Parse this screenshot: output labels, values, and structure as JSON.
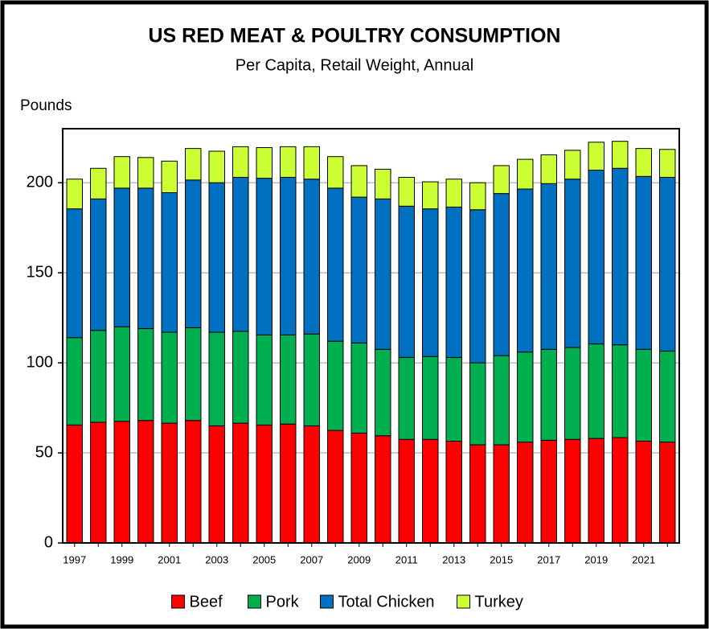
{
  "chart_data": {
    "type": "stacked_bar",
    "title": "US RED MEAT & POULTRY CONSUMPTION",
    "subtitle": "Per Capita, Retail Weight, Annual",
    "y_label": "Pounds",
    "categories": [
      "1997",
      null,
      "1999",
      null,
      "2001",
      null,
      "2003",
      null,
      "2005",
      null,
      "2007",
      null,
      "2009",
      null,
      "2011",
      null,
      "2013",
      null,
      "2015",
      null,
      "2017",
      null,
      "2019",
      null,
      "2021",
      null
    ],
    "series": [
      {
        "name": "Beef",
        "color": "#ff0000",
        "values": [
          65.5,
          67,
          67.5,
          68,
          66.5,
          68,
          65,
          66.5,
          65.5,
          66,
          65,
          62.5,
          61,
          59.5,
          57.5,
          57.5,
          56.5,
          54.5,
          54.5,
          56,
          57,
          57.5,
          58,
          58.5,
          56.5,
          56
        ]
      },
      {
        "name": "Pork",
        "color": "#00b050",
        "values": [
          48.5,
          51,
          52.5,
          51,
          50.5,
          51.5,
          52,
          51,
          50,
          49.5,
          51,
          49.5,
          50,
          48,
          45.5,
          46,
          46.5,
          45.5,
          49.5,
          50,
          50.5,
          51,
          52.5,
          51.5,
          51,
          50.5
        ]
      },
      {
        "name": "Total Chicken",
        "color": "#0070c0",
        "values": [
          71.5,
          73,
          77,
          78,
          77.5,
          82,
          83,
          85.5,
          87,
          87.5,
          86,
          85,
          81,
          83.5,
          84,
          82,
          83.5,
          85,
          90,
          90.5,
          92,
          93.5,
          96.5,
          98,
          96,
          96.5
        ]
      },
      {
        "name": "Turkey",
        "color": "#ccff33",
        "values": [
          16.5,
          17,
          17.5,
          17,
          17.5,
          17.5,
          17.5,
          17,
          17,
          17,
          18,
          17.5,
          17.5,
          16.5,
          16,
          15,
          15.5,
          15,
          15.5,
          16.5,
          16,
          16,
          15.5,
          15,
          15.5,
          15.5
        ]
      }
    ],
    "ylim": [
      0,
      230
    ],
    "yticks": [
      0,
      50,
      100,
      150,
      200
    ],
    "grid": true
  }
}
